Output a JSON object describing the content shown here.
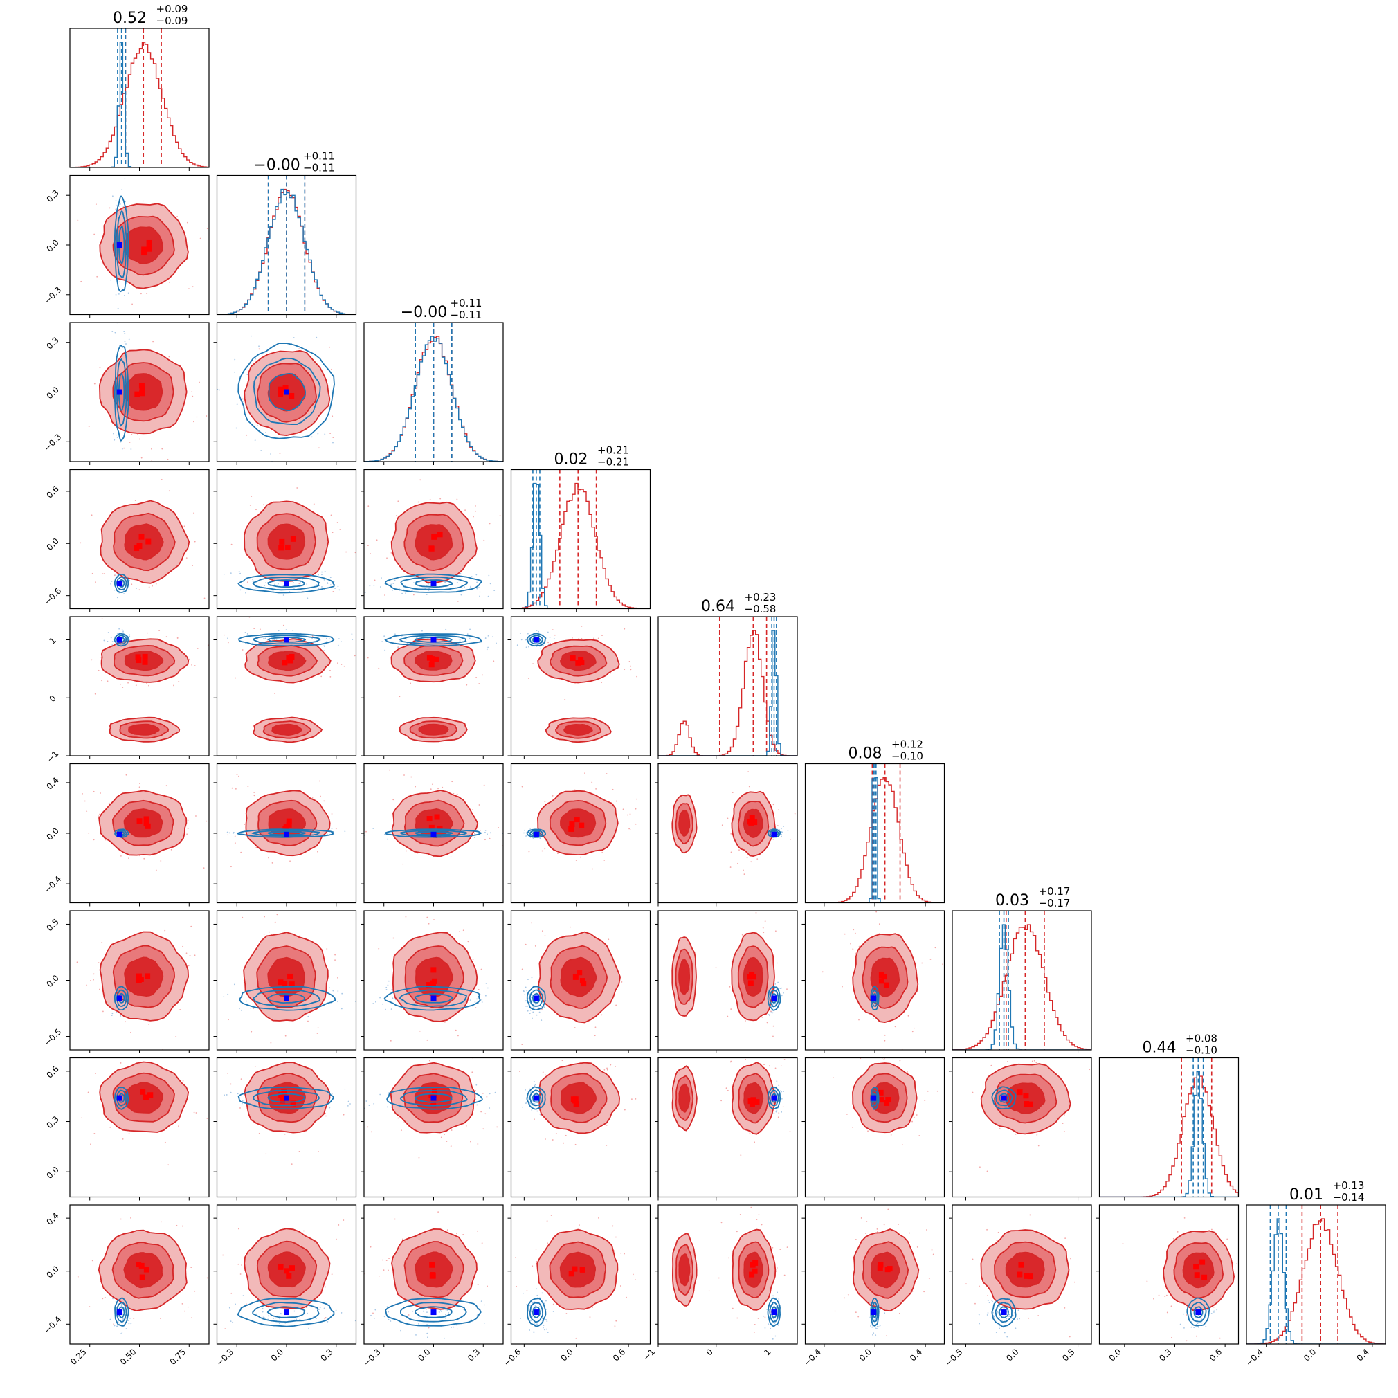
{
  "chart_data": {
    "type": "corner",
    "n_params": 9,
    "colors": {
      "a": "#d62728",
      "b": "#1f77b4",
      "a_marker": "#ff0000",
      "b_marker": "#0000ff"
    },
    "grid": false,
    "params": [
      {
        "range": [
          0.15,
          0.85
        ],
        "ticks": [
          0.25,
          0.5,
          0.75
        ],
        "tick_labels": [
          "0.25",
          "0.50",
          "0.75"
        ],
        "title": {
          "value": "0.52",
          "plus": "+0.09",
          "minus": "−0.09"
        },
        "a": {
          "mode": 0.52,
          "sd": 0.095,
          "quantiles": [
            0.43,
            0.52,
            0.61
          ]
        },
        "b": {
          "mode": 0.41,
          "sd": 0.013,
          "quantiles": [
            0.39,
            0.41,
            0.43
          ]
        },
        "b_marker": 0.4
      },
      {
        "range": [
          -0.42,
          0.42
        ],
        "ticks": [
          -0.3,
          0.0,
          0.3
        ],
        "tick_labels": [
          "−0.3",
          "0.0",
          "0.3"
        ],
        "title": {
          "value": "−0.00",
          "plus": "+0.11",
          "minus": "−0.11"
        },
        "a": {
          "mode": 0.0,
          "sd": 0.11,
          "quantiles": [
            -0.11,
            0.0,
            0.11
          ]
        },
        "b": {
          "mode": 0.0,
          "sd": 0.11,
          "quantiles": [
            -0.11,
            0.0,
            0.11
          ]
        },
        "b_marker": 0.0
      },
      {
        "range": [
          -0.42,
          0.42
        ],
        "ticks": [
          -0.3,
          0.0,
          0.3
        ],
        "tick_labels": [
          "−0.3",
          "0.0",
          "0.3"
        ],
        "title": {
          "value": "−0.00",
          "plus": "+0.11",
          "minus": "−0.11"
        },
        "a": {
          "mode": 0.0,
          "sd": 0.11,
          "quantiles": [
            -0.11,
            0.0,
            0.11
          ]
        },
        "b": {
          "mode": 0.0,
          "sd": 0.11,
          "quantiles": [
            -0.11,
            0.0,
            0.11
          ]
        },
        "b_marker": 0.0
      },
      {
        "range": [
          -0.75,
          0.85
        ],
        "ticks": [
          -0.6,
          0.0,
          0.6
        ],
        "tick_labels": [
          "−0.6",
          "0.0",
          "0.6"
        ],
        "title": {
          "value": "0.02",
          "plus": "+0.21",
          "minus": "−0.21"
        },
        "a": {
          "mode": 0.02,
          "sd": 0.2,
          "quantiles": [
            -0.19,
            0.02,
            0.23
          ]
        },
        "b": {
          "mode": -0.46,
          "sd": 0.04,
          "quantiles": [
            -0.5,
            -0.46,
            -0.42
          ]
        },
        "b_marker": -0.46
      },
      {
        "range": [
          -1.0,
          1.4
        ],
        "ticks": [
          -1,
          0,
          1
        ],
        "tick_labels": [
          "−1",
          "0",
          "1"
        ],
        "title": {
          "value": "0.64",
          "plus": "+0.23",
          "minus": "−0.58"
        },
        "a": {
          "mode": 0.64,
          "sd": 0.16,
          "quantiles": [
            0.06,
            0.64,
            0.87
          ],
          "secondary": {
            "mode": -0.55,
            "sd": 0.09,
            "weight": 0.28
          }
        },
        "b": {
          "mode": 1.0,
          "sd": 0.04,
          "quantiles": [
            0.96,
            1.0,
            1.04
          ]
        },
        "b_marker": 1.0
      },
      {
        "range": [
          -0.55,
          0.55
        ],
        "ticks": [
          -0.4,
          0.0,
          0.4
        ],
        "tick_labels": [
          "−0.4",
          "0.0",
          "0.4"
        ],
        "title": {
          "value": "0.08",
          "plus": "+0.12",
          "minus": "−0.10"
        },
        "a": {
          "mode": 0.08,
          "sd": 0.11,
          "quantiles": [
            -0.02,
            0.08,
            0.2
          ]
        },
        "b": {
          "mode": 0.0,
          "sd": 0.012,
          "quantiles": [
            -0.01,
            0.0,
            0.01
          ]
        },
        "b_marker": -0.01
      },
      {
        "range": [
          -0.62,
          0.62
        ],
        "ticks": [
          -0.5,
          0.0,
          0.5
        ],
        "tick_labels": [
          "−0.5",
          "0.0",
          "0.5"
        ],
        "title": {
          "value": "0.03",
          "plus": "+0.17",
          "minus": "−0.17"
        },
        "a": {
          "mode": 0.03,
          "sd": 0.17,
          "quantiles": [
            -0.14,
            0.03,
            0.2
          ]
        },
        "b": {
          "mode": -0.16,
          "sd": 0.04,
          "quantiles": [
            -0.2,
            -0.16,
            -0.12
          ]
        },
        "b_marker": -0.16
      },
      {
        "range": [
          -0.15,
          0.68
        ],
        "ticks": [
          0.0,
          0.3,
          0.6
        ],
        "tick_labels": [
          "0.0",
          "0.3",
          "0.6"
        ],
        "title": {
          "value": "0.44",
          "plus": "+0.08",
          "minus": "−0.10"
        },
        "a": {
          "mode": 0.44,
          "sd": 0.09,
          "quantiles": [
            0.34,
            0.44,
            0.52
          ]
        },
        "b": {
          "mode": 0.44,
          "sd": 0.025,
          "quantiles": [
            0.41,
            0.44,
            0.47
          ]
        },
        "b_marker": 0.44
      },
      {
        "range": [
          -0.55,
          0.5
        ],
        "ticks": [
          -0.4,
          0.0,
          0.4
        ],
        "tick_labels": [
          "−0.4",
          "0.0",
          "0.4"
        ],
        "title": {
          "value": "0.01",
          "plus": "+0.13",
          "minus": "−0.14"
        },
        "a": {
          "mode": 0.01,
          "sd": 0.13,
          "quantiles": [
            -0.13,
            0.01,
            0.14
          ]
        },
        "b": {
          "mode": -0.31,
          "sd": 0.04,
          "quantiles": [
            -0.37,
            -0.31,
            -0.25
          ]
        },
        "b_marker": -0.31
      }
    ]
  }
}
